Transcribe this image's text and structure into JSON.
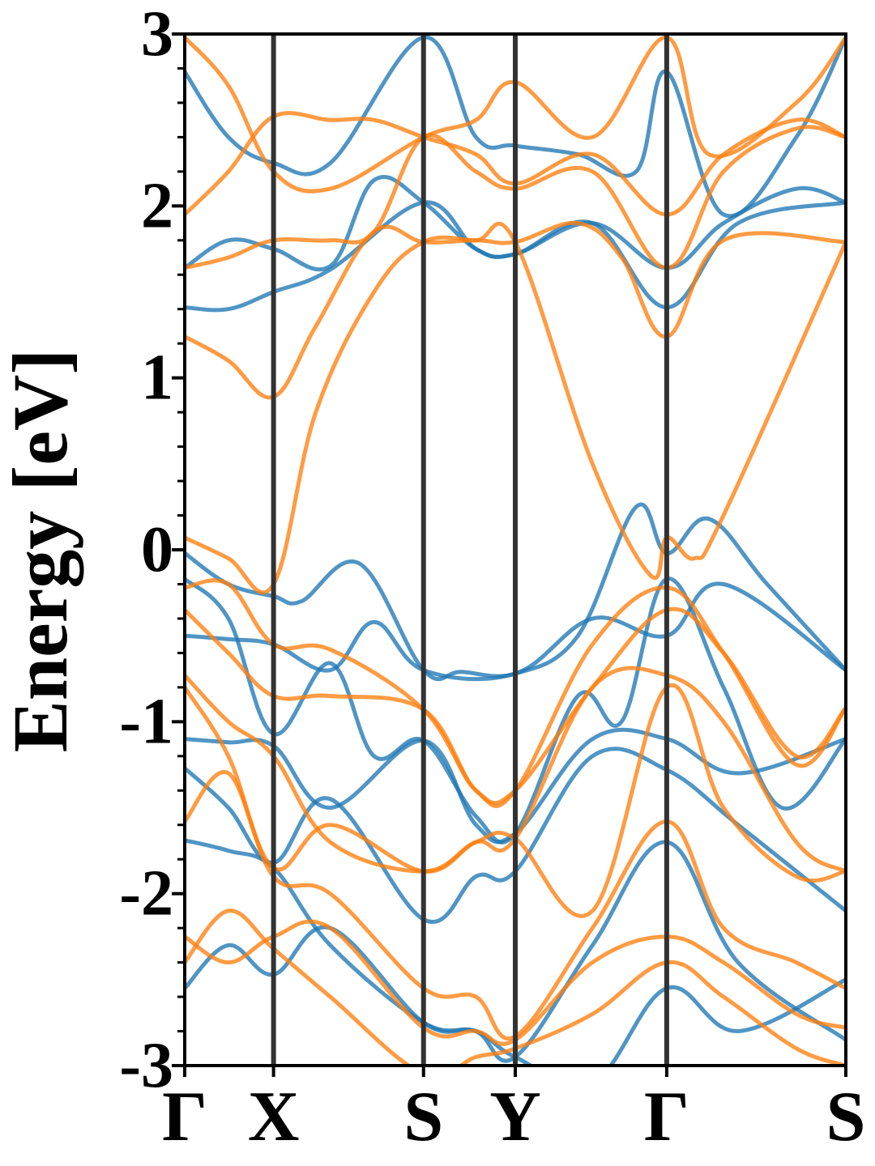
{
  "chart_data": {
    "type": "line",
    "title": "",
    "xlabel": "",
    "ylabel": "Energy [eV]",
    "ylim": [
      -3,
      3
    ],
    "xlim": [
      0,
      4.54
    ],
    "yticks": [
      -3,
      -2,
      -1,
      0,
      1,
      2,
      3
    ],
    "yticklabels": [
      "-3",
      "-2",
      "-1",
      "0",
      "1",
      "2",
      "3"
    ],
    "minor_y_step": 0.2,
    "grid": false,
    "legend": "none",
    "kpoints": [
      {
        "label": "Γ",
        "x": 0
      },
      {
        "label": "X",
        "x": 0.61
      },
      {
        "label": "S",
        "x": 1.64
      },
      {
        "label": "Y",
        "x": 2.27
      },
      {
        "label": "Γ",
        "x": 3.31
      },
      {
        "label": "S",
        "x": 4.54
      }
    ],
    "series_colors": {
      "blue": "#1f77b4",
      "orange": "#ff7f0e"
    },
    "series": [
      {
        "color": "blue",
        "x": [
          0,
          0.3,
          0.61,
          0.8,
          1.2,
          1.64,
          1.9,
          2.27,
          2.7,
          3.1,
          3.31,
          3.6,
          4.0,
          4.54
        ],
        "y": [
          -0.02,
          -0.2,
          -0.27,
          -0.3,
          -0.08,
          -0.7,
          -0.71,
          -0.72,
          -0.5,
          0.25,
          -0.02,
          0.18,
          -0.2,
          -0.7
        ]
      },
      {
        "color": "blue",
        "x": [
          0,
          0.3,
          0.61,
          1.0,
          1.3,
          1.64,
          2.27,
          2.8,
          3.31,
          3.7,
          4.54
        ],
        "y": [
          -0.5,
          -0.52,
          -0.55,
          -0.7,
          -0.42,
          -0.7,
          -0.72,
          -0.4,
          -0.5,
          -0.2,
          -0.7
        ]
      },
      {
        "color": "blue",
        "x": [
          0,
          0.3,
          0.61,
          1.0,
          1.3,
          1.64,
          2.0,
          2.27,
          2.7,
          3.0,
          3.31,
          3.7,
          4.1,
          4.54
        ],
        "y": [
          -0.17,
          -0.4,
          -1.07,
          -0.66,
          -1.2,
          -1.11,
          -1.55,
          -1.65,
          -0.85,
          -1.0,
          -0.17,
          -0.8,
          -1.5,
          -1.1
        ]
      },
      {
        "color": "blue",
        "x": [
          0,
          0.3,
          0.61,
          1.0,
          1.64,
          2.0,
          2.27,
          2.8,
          3.31,
          3.8,
          4.54
        ],
        "y": [
          -1.1,
          -1.12,
          -1.14,
          -1.5,
          -1.11,
          -1.6,
          -1.65,
          -1.1,
          -1.1,
          -1.3,
          -1.1
        ]
      },
      {
        "color": "blue",
        "x": [
          0,
          0.3,
          0.61,
          1.0,
          1.64,
          2.0,
          2.27,
          2.8,
          3.31,
          3.8,
          4.54
        ],
        "y": [
          -1.27,
          -1.5,
          -1.82,
          -1.45,
          -2.15,
          -1.9,
          -1.87,
          -1.2,
          -1.28,
          -1.6,
          -2.1
        ]
      },
      {
        "color": "blue",
        "x": [
          0,
          0.3,
          0.61,
          1.0,
          1.64,
          2.0,
          2.27,
          2.8,
          3.31,
          3.8,
          4.54
        ],
        "y": [
          -1.69,
          -1.75,
          -1.85,
          -2.3,
          -2.75,
          -2.8,
          -2.95,
          -2.3,
          -1.7,
          -2.4,
          -2.85
        ]
      },
      {
        "color": "blue",
        "x": [
          0,
          0.3,
          0.61,
          1.0,
          1.64,
          2.0,
          2.27,
          2.8,
          3.31,
          3.8,
          4.54
        ],
        "y": [
          -2.55,
          -2.3,
          -2.47,
          -2.2,
          -2.75,
          -2.8,
          -2.95,
          -3.1,
          -2.55,
          -2.8,
          -2.5
        ]
      },
      {
        "color": "blue",
        "x": [
          0,
          0.3,
          0.61,
          1.0,
          1.64,
          2.0,
          2.27,
          2.8,
          3.31,
          3.8,
          4.54
        ],
        "y": [
          1.41,
          1.4,
          1.5,
          1.63,
          2.02,
          1.75,
          1.72,
          1.9,
          1.41,
          1.9,
          2.02
        ]
      },
      {
        "color": "blue",
        "x": [
          0,
          0.3,
          0.61,
          1.0,
          1.3,
          1.64,
          2.0,
          2.27,
          2.8,
          3.31,
          3.7,
          4.2,
          4.54
        ],
        "y": [
          1.64,
          1.8,
          1.75,
          1.65,
          2.15,
          2.02,
          1.75,
          1.72,
          1.9,
          1.64,
          1.9,
          2.1,
          2.02
        ]
      },
      {
        "color": "blue",
        "x": [
          0,
          0.3,
          0.61,
          1.0,
          1.64,
          2.0,
          2.27,
          2.7,
          3.1,
          3.31,
          3.7,
          4.2,
          4.54
        ],
        "y": [
          2.78,
          2.4,
          2.25,
          2.25,
          2.98,
          2.4,
          2.35,
          2.3,
          2.2,
          2.78,
          1.95,
          2.4,
          2.98
        ]
      },
      {
        "color": "orange",
        "x": [
          0,
          0.3,
          0.61,
          0.9,
          1.3,
          1.64,
          2.0,
          2.27,
          2.8,
          3.2,
          3.31,
          3.5,
          3.7,
          4.54
        ],
        "y": [
          0.07,
          -0.05,
          -0.2,
          0.8,
          1.5,
          1.79,
          1.8,
          1.79,
          0.5,
          -0.15,
          0.07,
          -0.05,
          0.2,
          1.79
        ]
      },
      {
        "color": "orange",
        "x": [
          0,
          0.3,
          0.61,
          0.9,
          1.3,
          1.64,
          2.0,
          2.27,
          2.7,
          3.0,
          3.31,
          3.7,
          4.54
        ],
        "y": [
          1.24,
          1.1,
          0.89,
          1.3,
          1.85,
          1.79,
          1.8,
          1.79,
          1.9,
          1.7,
          1.24,
          1.8,
          1.79
        ]
      },
      {
        "color": "orange",
        "x": [
          0,
          0.3,
          0.61,
          1.0,
          1.3,
          1.64,
          2.0,
          2.27,
          2.8,
          3.31,
          3.7,
          4.2,
          4.54
        ],
        "y": [
          1.64,
          1.7,
          1.8,
          1.8,
          1.85,
          2.4,
          2.2,
          2.1,
          2.2,
          1.64,
          2.2,
          2.45,
          2.4
        ]
      },
      {
        "color": "orange",
        "x": [
          0,
          0.3,
          0.61,
          1.0,
          1.3,
          1.64,
          2.0,
          2.27,
          2.8,
          3.31,
          3.7,
          4.2,
          4.54
        ],
        "y": [
          1.95,
          2.2,
          2.52,
          2.5,
          2.5,
          2.4,
          2.3,
          2.13,
          2.3,
          1.95,
          2.3,
          2.5,
          2.4
        ]
      },
      {
        "color": "orange",
        "x": [
          0,
          0.3,
          0.61,
          1.0,
          1.64,
          2.0,
          2.27,
          2.8,
          3.31,
          3.6,
          4.2,
          4.54
        ],
        "y": [
          2.98,
          2.7,
          2.2,
          2.1,
          2.4,
          2.5,
          2.72,
          2.4,
          2.98,
          2.3,
          2.6,
          2.98
        ]
      },
      {
        "color": "orange",
        "x": [
          0,
          0.3,
          0.61,
          1.0,
          1.64,
          2.0,
          2.27,
          2.8,
          3.31,
          3.7,
          4.2,
          4.54
        ],
        "y": [
          -0.22,
          -0.2,
          -0.55,
          -0.58,
          -0.93,
          -1.4,
          -1.4,
          -0.55,
          -0.22,
          -0.6,
          -1.25,
          -0.92
        ]
      },
      {
        "color": "orange",
        "x": [
          0,
          0.3,
          0.61,
          1.0,
          1.64,
          2.0,
          2.27,
          2.8,
          3.31,
          3.7,
          4.2,
          4.54
        ],
        "y": [
          -0.35,
          -0.6,
          -0.85,
          -0.85,
          -0.93,
          -1.4,
          -1.4,
          -0.8,
          -0.35,
          -0.6,
          -1.2,
          -0.92
        ]
      },
      {
        "color": "orange",
        "x": [
          0,
          0.3,
          0.61,
          1.0,
          1.64,
          2.0,
          2.27,
          2.8,
          3.31,
          3.7,
          4.2,
          4.54
        ],
        "y": [
          -0.73,
          -1.0,
          -1.2,
          -1.7,
          -1.87,
          -1.7,
          -1.68,
          -0.8,
          -0.73,
          -1.0,
          -1.7,
          -1.87
        ]
      },
      {
        "color": "orange",
        "x": [
          0,
          0.3,
          0.61,
          1.0,
          1.64,
          2.0,
          2.27,
          2.8,
          3.31,
          3.7,
          4.2,
          4.54
        ],
        "y": [
          -0.8,
          -1.2,
          -1.85,
          -1.6,
          -1.87,
          -1.7,
          -1.68,
          -2.1,
          -0.8,
          -1.5,
          -1.9,
          -1.87
        ]
      },
      {
        "color": "orange",
        "x": [
          0,
          0.3,
          0.61,
          1.0,
          1.64,
          2.0,
          2.27,
          2.8,
          3.31,
          3.7,
          4.2,
          4.54
        ],
        "y": [
          -1.58,
          -1.3,
          -1.9,
          -2.0,
          -2.55,
          -2.6,
          -2.83,
          -2.2,
          -1.58,
          -2.2,
          -2.4,
          -2.55
        ]
      },
      {
        "color": "orange",
        "x": [
          0,
          0.3,
          0.61,
          1.0,
          1.64,
          2.0,
          2.27,
          2.8,
          3.31,
          3.7,
          4.2,
          4.54
        ],
        "y": [
          -2.25,
          -2.4,
          -2.25,
          -2.2,
          -2.78,
          -2.8,
          -2.85,
          -2.4,
          -2.25,
          -2.4,
          -2.7,
          -2.78
        ]
      },
      {
        "color": "orange",
        "x": [
          0,
          0.3,
          0.61,
          1.0,
          1.64,
          2.0,
          2.27,
          2.8,
          3.31,
          3.7,
          4.2,
          4.54
        ],
        "y": [
          -2.4,
          -2.1,
          -2.32,
          -2.6,
          -3.05,
          -2.95,
          -2.9,
          -2.7,
          -2.4,
          -2.6,
          -2.9,
          -3.0
        ]
      }
    ]
  }
}
